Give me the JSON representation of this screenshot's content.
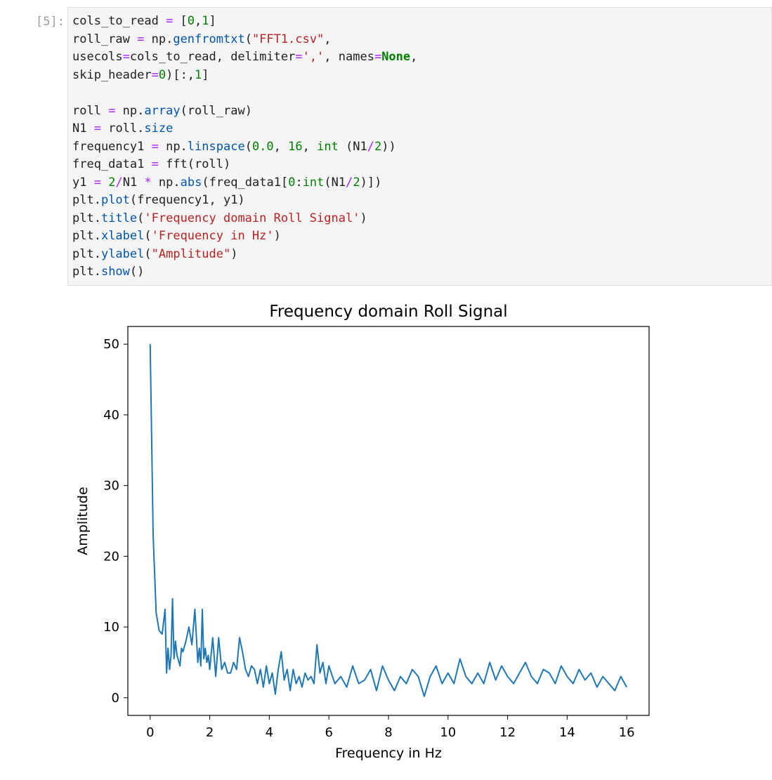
{
  "cell": {
    "prompt": "[5]:",
    "code_lines": [
      [
        {
          "t": "cols_to_read "
        },
        {
          "t": "=",
          "c": "op"
        },
        {
          "t": " ["
        },
        {
          "t": "0",
          "c": "num"
        },
        {
          "t": ","
        },
        {
          "t": "1",
          "c": "num"
        },
        {
          "t": "]"
        }
      ],
      [
        {
          "t": "roll_raw "
        },
        {
          "t": "=",
          "c": "op"
        },
        {
          "t": " np."
        },
        {
          "t": "genfromtxt",
          "c": "fn"
        },
        {
          "t": "("
        },
        {
          "t": "\"FFT1.csv\"",
          "c": "str"
        },
        {
          "t": ","
        }
      ],
      [
        {
          "t": "usecols"
        },
        {
          "t": "=",
          "c": "op"
        },
        {
          "t": "cols_to_read, delimiter"
        },
        {
          "t": "=",
          "c": "op"
        },
        {
          "t": "','",
          "c": "str"
        },
        {
          "t": ", names"
        },
        {
          "t": "=",
          "c": "op"
        },
        {
          "t": "None",
          "c": "kw"
        },
        {
          "t": ","
        }
      ],
      [
        {
          "t": "skip_header"
        },
        {
          "t": "=",
          "c": "op"
        },
        {
          "t": "0",
          "c": "num"
        },
        {
          "t": ")[:,"
        },
        {
          "t": "1",
          "c": "num"
        },
        {
          "t": "]"
        }
      ],
      [],
      [
        {
          "t": "roll "
        },
        {
          "t": "=",
          "c": "op"
        },
        {
          "t": " np."
        },
        {
          "t": "array",
          "c": "fn"
        },
        {
          "t": "(roll_raw)"
        }
      ],
      [
        {
          "t": "N1 "
        },
        {
          "t": "=",
          "c": "op"
        },
        {
          "t": " roll."
        },
        {
          "t": "size",
          "c": "fn"
        }
      ],
      [
        {
          "t": "frequency1 "
        },
        {
          "t": "=",
          "c": "op"
        },
        {
          "t": " np."
        },
        {
          "t": "linspace",
          "c": "fn"
        },
        {
          "t": "("
        },
        {
          "t": "0.0",
          "c": "num"
        },
        {
          "t": ", "
        },
        {
          "t": "16",
          "c": "num"
        },
        {
          "t": ", "
        },
        {
          "t": "int",
          "c": "bi"
        },
        {
          "t": " (N1"
        },
        {
          "t": "/",
          "c": "op"
        },
        {
          "t": "2",
          "c": "num"
        },
        {
          "t": "))"
        }
      ],
      [
        {
          "t": "freq_data1 "
        },
        {
          "t": "=",
          "c": "op"
        },
        {
          "t": " fft(roll)"
        }
      ],
      [
        {
          "t": "y1 "
        },
        {
          "t": "=",
          "c": "op"
        },
        {
          "t": " "
        },
        {
          "t": "2",
          "c": "num"
        },
        {
          "t": "/",
          "c": "op"
        },
        {
          "t": "N1 "
        },
        {
          "t": "*",
          "c": "op"
        },
        {
          "t": " np."
        },
        {
          "t": "abs",
          "c": "fn"
        },
        {
          "t": "(freq_data1["
        },
        {
          "t": "0",
          "c": "num"
        },
        {
          "t": ":"
        },
        {
          "t": "int",
          "c": "bi"
        },
        {
          "t": "(N1"
        },
        {
          "t": "/",
          "c": "op"
        },
        {
          "t": "2",
          "c": "num"
        },
        {
          "t": ")])"
        }
      ],
      [
        {
          "t": "plt."
        },
        {
          "t": "plot",
          "c": "fn"
        },
        {
          "t": "(frequency1, y1)"
        }
      ],
      [
        {
          "t": "plt."
        },
        {
          "t": "title",
          "c": "fn"
        },
        {
          "t": "("
        },
        {
          "t": "'Frequency domain Roll Signal'",
          "c": "str"
        },
        {
          "t": ")"
        }
      ],
      [
        {
          "t": "plt."
        },
        {
          "t": "xlabel",
          "c": "fn"
        },
        {
          "t": "("
        },
        {
          "t": "'Frequency in Hz'",
          "c": "str"
        },
        {
          "t": ")"
        }
      ],
      [
        {
          "t": "plt."
        },
        {
          "t": "ylabel",
          "c": "fn"
        },
        {
          "t": "("
        },
        {
          "t": "\"Amplitude\"",
          "c": "str"
        },
        {
          "t": ")"
        }
      ],
      [
        {
          "t": "plt."
        },
        {
          "t": "show",
          "c": "fn"
        },
        {
          "t": "()"
        }
      ]
    ]
  },
  "colors": {
    "line": "#1f77b4",
    "code_fn": "#0055aa",
    "code_str": "#ba2121",
    "code_num": "#008000",
    "code_op": "#aa22ff",
    "cell_bg": "#f5f5f5",
    "prompt": "#9e9e9e"
  },
  "chart_data": {
    "type": "line",
    "title": "Frequency domain Roll Signal",
    "xlabel": "Frequency in Hz",
    "ylabel": "Amplitude",
    "xlim": [
      -0.75,
      16.75
    ],
    "ylim": [
      -2.5,
      52.5
    ],
    "xticks": [
      0,
      2,
      4,
      6,
      8,
      10,
      12,
      14,
      16
    ],
    "yticks": [
      0,
      10,
      20,
      30,
      40,
      50
    ],
    "grid": false,
    "series": [
      {
        "x": [
          0,
          0.1,
          0.2,
          0.3,
          0.4,
          0.5,
          0.55,
          0.6,
          0.65,
          0.7,
          0.75,
          0.8,
          0.85,
          0.9,
          1.0,
          1.05,
          1.1,
          1.2,
          1.3,
          1.4,
          1.5,
          1.6,
          1.65,
          1.7,
          1.75,
          1.8,
          1.85,
          1.9,
          1.95,
          2.0,
          2.1,
          2.2,
          2.3,
          2.4,
          2.5,
          2.6,
          2.7,
          2.8,
          2.9,
          3.0,
          3.1,
          3.2,
          3.3,
          3.4,
          3.5,
          3.6,
          3.7,
          3.8,
          3.9,
          4.0,
          4.1,
          4.2,
          4.3,
          4.4,
          4.5,
          4.6,
          4.7,
          4.8,
          4.9,
          5.0,
          5.1,
          5.2,
          5.3,
          5.4,
          5.5,
          5.6,
          5.7,
          5.8,
          5.9,
          6.0,
          6.2,
          6.4,
          6.6,
          6.8,
          7.0,
          7.2,
          7.4,
          7.6,
          7.8,
          8.0,
          8.2,
          8.4,
          8.6,
          8.8,
          9.0,
          9.2,
          9.4,
          9.6,
          9.8,
          10.0,
          10.2,
          10.4,
          10.6,
          10.8,
          11.0,
          11.2,
          11.4,
          11.6,
          11.8,
          12.0,
          12.2,
          12.4,
          12.6,
          12.8,
          13.0,
          13.2,
          13.4,
          13.6,
          13.8,
          14.0,
          14.2,
          14.4,
          14.6,
          14.8,
          15.0,
          15.2,
          15.4,
          15.6,
          15.8,
          16.0
        ],
        "values": [
          50,
          23,
          12,
          9.5,
          9,
          12.5,
          3.5,
          7,
          4,
          6,
          14,
          5.5,
          8,
          6,
          4.5,
          7,
          6.5,
          8,
          10,
          7.5,
          12.5,
          5,
          7,
          4.5,
          12.5,
          5.5,
          7,
          5,
          6,
          4,
          8.5,
          3,
          8.5,
          4,
          5,
          3.5,
          3.5,
          5,
          4,
          8.5,
          6.5,
          4,
          3,
          4.5,
          4,
          2,
          4,
          1.5,
          4.5,
          2,
          3.5,
          0.5,
          4,
          6.5,
          2.5,
          4,
          1,
          4,
          2,
          3,
          1.5,
          3.5,
          2.5,
          3,
          2,
          7.5,
          3.5,
          5,
          2,
          4.5,
          2,
          3,
          1.5,
          4.5,
          2,
          2.5,
          4,
          1,
          4.5,
          2.5,
          1,
          3,
          2,
          4,
          3,
          0.2,
          3,
          4.5,
          2,
          3.5,
          2,
          5.5,
          3,
          2,
          3.5,
          2,
          5,
          2.5,
          4.5,
          3,
          2,
          3.5,
          5,
          3,
          2,
          4,
          3.5,
          2,
          4.5,
          3,
          2,
          4,
          2.5,
          3.5,
          1.5,
          3,
          2,
          1,
          3,
          1.5
        ]
      }
    ]
  }
}
